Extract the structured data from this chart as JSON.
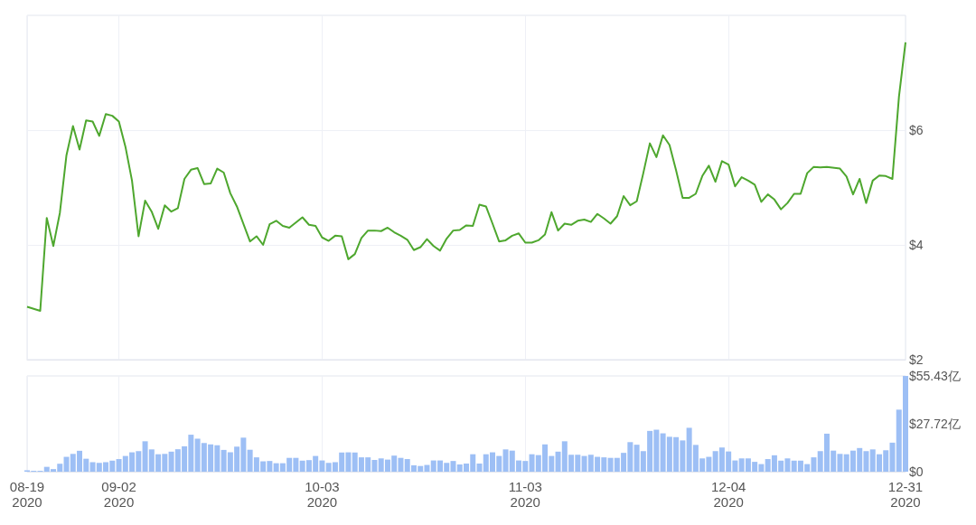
{
  "chart_data": [
    {
      "type": "line",
      "xlim": [
        "2020-08-19",
        "2020-12-31"
      ],
      "ylim": [
        2,
        8
      ],
      "tick_labels": "y",
      "grid": true,
      "marker": "none",
      "xticks": [
        {
          "value": "2020-08-19",
          "label": null
        },
        {
          "value": "2020-09-02",
          "label": null
        },
        {
          "value": "2020-10-03",
          "label": null
        },
        {
          "value": "2020-11-03",
          "label": null
        },
        {
          "value": "2020-12-04",
          "label": null
        },
        {
          "value": "2020-12-31",
          "label": null
        }
      ],
      "yticks": [
        {
          "value": 2,
          "label": "$2"
        },
        {
          "value": 4,
          "label": "$4"
        },
        {
          "value": 6,
          "label": "$6"
        }
      ],
      "series": [
        {
          "color": "#4ea72e",
          "x": [
            "2020-08-19",
            "2020-08-21",
            "2020-08-22",
            "2020-08-23",
            "2020-08-24",
            "2020-08-25",
            "2020-08-26",
            "2020-08-27",
            "2020-08-28",
            "2020-08-29",
            "2020-08-30",
            "2020-08-31",
            "2020-09-01",
            "2020-09-02",
            "2020-09-03",
            "2020-09-04",
            "2020-09-05",
            "2020-09-06",
            "2020-09-07",
            "2020-09-08",
            "2020-09-09",
            "2020-09-10",
            "2020-09-11",
            "2020-09-12",
            "2020-09-13",
            "2020-09-14",
            "2020-09-15",
            "2020-09-16",
            "2020-09-17",
            "2020-09-18",
            "2020-09-19",
            "2020-09-20",
            "2020-09-22",
            "2020-09-23",
            "2020-09-24",
            "2020-09-25",
            "2020-09-26",
            "2020-09-27",
            "2020-09-28",
            "2020-09-29",
            "2020-09-30",
            "2020-10-01",
            "2020-10-02",
            "2020-10-03",
            "2020-10-04",
            "2020-10-05",
            "2020-10-06",
            "2020-10-07",
            "2020-10-08",
            "2020-10-09",
            "2020-10-10",
            "2020-10-11",
            "2020-10-12",
            "2020-10-13",
            "2020-10-14",
            "2020-10-15",
            "2020-10-16",
            "2020-10-17",
            "2020-10-18",
            "2020-10-19",
            "2020-10-20",
            "2020-10-21",
            "2020-10-22",
            "2020-10-23",
            "2020-10-24",
            "2020-10-25",
            "2020-10-26",
            "2020-10-27",
            "2020-10-28",
            "2020-10-29",
            "2020-10-30",
            "2020-10-31",
            "2020-11-01",
            "2020-11-02",
            "2020-11-03",
            "2020-11-04",
            "2020-11-05",
            "2020-11-06",
            "2020-11-07",
            "2020-11-08",
            "2020-11-09",
            "2020-11-10",
            "2020-11-11",
            "2020-11-12",
            "2020-11-13",
            "2020-11-14",
            "2020-11-15",
            "2020-11-16",
            "2020-11-17",
            "2020-11-18",
            "2020-11-19",
            "2020-11-20",
            "2020-11-21",
            "2020-11-22",
            "2020-11-23",
            "2020-11-24",
            "2020-11-25",
            "2020-11-26",
            "2020-11-27",
            "2020-11-28",
            "2020-11-29",
            "2020-11-30",
            "2020-12-01",
            "2020-12-02",
            "2020-12-03",
            "2020-12-04",
            "2020-12-05",
            "2020-12-06",
            "2020-12-07",
            "2020-12-08",
            "2020-12-09",
            "2020-12-10",
            "2020-12-11",
            "2020-12-12",
            "2020-12-13",
            "2020-12-14",
            "2020-12-15",
            "2020-12-16",
            "2020-12-17",
            "2020-12-18",
            "2020-12-19",
            "2020-12-21",
            "2020-12-22",
            "2020-12-23",
            "2020-12-24",
            "2020-12-25",
            "2020-12-26",
            "2020-12-27",
            "2020-12-28",
            "2020-12-29",
            "2020-12-30",
            "2020-12-31"
          ],
          "values": [
            2.92,
            2.85,
            4.47,
            3.98,
            4.56,
            5.56,
            6.07,
            5.66,
            6.17,
            6.15,
            5.9,
            6.28,
            6.25,
            6.15,
            5.71,
            5.12,
            4.15,
            4.77,
            4.58,
            4.28,
            4.69,
            4.58,
            4.64,
            5.15,
            5.31,
            5.34,
            5.06,
            5.07,
            5.33,
            5.26,
            4.9,
            4.67,
            4.06,
            4.15,
            4.0,
            4.36,
            4.42,
            4.33,
            4.3,
            4.39,
            4.48,
            4.35,
            4.33,
            4.13,
            4.07,
            4.16,
            4.15,
            3.75,
            3.84,
            4.12,
            4.25,
            4.25,
            4.24,
            4.3,
            4.22,
            4.16,
            4.09,
            3.91,
            3.96,
            4.1,
            3.98,
            3.9,
            4.11,
            4.25,
            4.26,
            4.34,
            4.33,
            4.7,
            4.67,
            4.37,
            4.06,
            4.08,
            4.16,
            4.2,
            4.04,
            4.04,
            4.08,
            4.18,
            4.57,
            4.25,
            4.37,
            4.35,
            4.42,
            4.44,
            4.4,
            4.54,
            4.46,
            4.37,
            4.5,
            4.85,
            4.69,
            4.76,
            5.25,
            5.77,
            5.53,
            5.91,
            5.74,
            5.3,
            4.82,
            4.82,
            4.89,
            5.2,
            5.38,
            5.1,
            5.46,
            5.4,
            5.02,
            5.18,
            5.12,
            5.05,
            4.75,
            4.88,
            4.79,
            4.62,
            4.73,
            4.89,
            4.89,
            5.25,
            5.36,
            5.35,
            5.36,
            5.33,
            5.19,
            4.88,
            5.15,
            4.73,
            5.12,
            5.21,
            5.2,
            5.15,
            6.58,
            7.53
          ]
        }
      ]
    },
    {
      "type": "bar",
      "xlim": [
        "2020-08-19",
        "2020-12-31"
      ],
      "ylim": [
        0,
        55.43
      ],
      "grid": "x",
      "color": "#9dbff5",
      "xticks": [
        {
          "value": "2020-08-19",
          "label": "08-19\n2020"
        },
        {
          "value": "2020-09-02",
          "label": "09-02\n2020"
        },
        {
          "value": "2020-10-03",
          "label": "10-03\n2020"
        },
        {
          "value": "2020-11-03",
          "label": "11-03\n2020"
        },
        {
          "value": "2020-12-04",
          "label": "12-04\n2020"
        },
        {
          "value": "2020-12-31",
          "label": "12-31\n2020"
        }
      ],
      "yticks": [
        {
          "value": 0,
          "label": "$0"
        },
        {
          "value": 27.72,
          "label": "$27.72亿"
        },
        {
          "value": 55.43,
          "label": "$55.43亿"
        }
      ],
      "x": [
        "2020-08-19",
        "2020-08-20",
        "2020-08-21",
        "2020-08-22",
        "2020-08-23",
        "2020-08-24",
        "2020-08-25",
        "2020-08-26",
        "2020-08-27",
        "2020-08-28",
        "2020-08-29",
        "2020-08-30",
        "2020-08-31",
        "2020-09-01",
        "2020-09-02",
        "2020-09-03",
        "2020-09-04",
        "2020-09-05",
        "2020-09-06",
        "2020-09-07",
        "2020-09-08",
        "2020-09-09",
        "2020-09-10",
        "2020-09-11",
        "2020-09-12",
        "2020-09-13",
        "2020-09-14",
        "2020-09-15",
        "2020-09-16",
        "2020-09-17",
        "2020-09-18",
        "2020-09-19",
        "2020-09-20",
        "2020-09-21",
        "2020-09-22",
        "2020-09-23",
        "2020-09-24",
        "2020-09-25",
        "2020-09-26",
        "2020-09-27",
        "2020-09-28",
        "2020-09-29",
        "2020-09-30",
        "2020-10-01",
        "2020-10-02",
        "2020-10-03",
        "2020-10-04",
        "2020-10-05",
        "2020-10-06",
        "2020-10-07",
        "2020-10-08",
        "2020-10-09",
        "2020-10-10",
        "2020-10-11",
        "2020-10-12",
        "2020-10-13",
        "2020-10-14",
        "2020-10-15",
        "2020-10-16",
        "2020-10-17",
        "2020-10-18",
        "2020-10-19",
        "2020-10-20",
        "2020-10-21",
        "2020-10-22",
        "2020-10-23",
        "2020-10-24",
        "2020-10-25",
        "2020-10-26",
        "2020-10-27",
        "2020-10-28",
        "2020-10-29",
        "2020-10-30",
        "2020-10-31",
        "2020-11-01",
        "2020-11-02",
        "2020-11-03",
        "2020-11-04",
        "2020-11-05",
        "2020-11-06",
        "2020-11-07",
        "2020-11-08",
        "2020-11-09",
        "2020-11-10",
        "2020-11-11",
        "2020-11-12",
        "2020-11-13",
        "2020-11-14",
        "2020-11-15",
        "2020-11-16",
        "2020-11-17",
        "2020-11-18",
        "2020-11-19",
        "2020-11-20",
        "2020-11-21",
        "2020-11-22",
        "2020-11-23",
        "2020-11-24",
        "2020-11-25",
        "2020-11-26",
        "2020-11-27",
        "2020-11-28",
        "2020-11-29",
        "2020-11-30",
        "2020-12-01",
        "2020-12-02",
        "2020-12-03",
        "2020-12-04",
        "2020-12-05",
        "2020-12-06",
        "2020-12-07",
        "2020-12-08",
        "2020-12-09",
        "2020-12-10",
        "2020-12-11",
        "2020-12-12",
        "2020-12-13",
        "2020-12-14",
        "2020-12-15",
        "2020-12-16",
        "2020-12-17",
        "2020-12-18",
        "2020-12-19",
        "2020-12-20",
        "2020-12-21",
        "2020-12-22",
        "2020-12-23",
        "2020-12-24",
        "2020-12-25",
        "2020-12-26",
        "2020-12-27",
        "2020-12-28",
        "2020-12-29",
        "2020-12-30",
        "2020-12-31"
      ],
      "values": [
        0.8,
        0.5,
        0.5,
        2.8,
        1.5,
        4.6,
        8.6,
        10.3,
        12.1,
        7.5,
        5.5,
        5.1,
        5.5,
        6.4,
        7.3,
        9.1,
        11.2,
        11.9,
        17.6,
        12.9,
        10.1,
        10.3,
        11.6,
        13,
        14.7,
        21.4,
        19.1,
        16.6,
        15.8,
        15.3,
        12.6,
        11.2,
        14.5,
        19.7,
        12.7,
        8.3,
        6,
        6.2,
        4.9,
        4.9,
        8,
        8,
        6.4,
        6.7,
        9.1,
        6.5,
        5.1,
        5.5,
        11.1,
        11.2,
        11.1,
        8.3,
        8.3,
        6.8,
        7.7,
        7,
        9.3,
        8,
        7.3,
        3.7,
        3.3,
        3.9,
        6.5,
        6.5,
        5.1,
        6.2,
        4.2,
        4.7,
        10.1,
        4.7,
        10.1,
        11.2,
        9.1,
        12.9,
        12.2,
        6.5,
        6.2,
        10.1,
        9.6,
        15.8,
        9.1,
        11.6,
        17.6,
        9.8,
        9.8,
        9.1,
        9.8,
        8.6,
        8.3,
        8,
        8,
        10.9,
        17.1,
        15.6,
        11.9,
        23.6,
        24.3,
        22.2,
        20.2,
        20,
        18.1,
        25.4,
        15.5,
        7.7,
        8.6,
        11.9,
        14,
        11.7,
        6.5,
        7.7,
        7.7,
        5.7,
        4.4,
        7.3,
        9.5,
        6.4,
        7.7,
        6.4,
        6.4,
        4.4,
        8.3,
        11.9,
        22,
        12.2,
        10.3,
        10.1,
        12.2,
        13.7,
        11.9,
        12.9,
        10.1,
        12.4,
        16.8,
        35.9,
        55.4
      ]
    }
  ]
}
